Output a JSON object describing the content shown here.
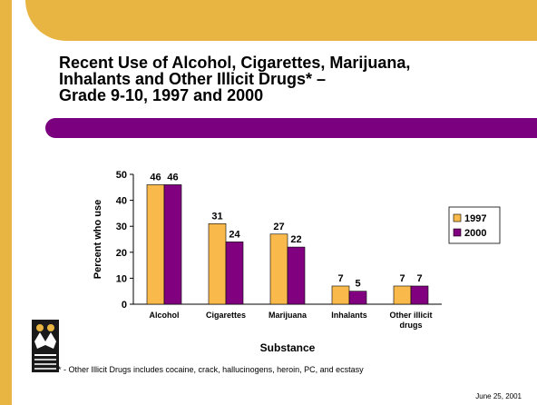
{
  "slide": {
    "title_lines": [
      "Recent Use of Alcohol, Cigarettes, Marijuana,",
      "Inhalants and Other Illicit Drugs* –",
      "Grade 9-10, 1997 and 2000"
    ],
    "footnote": "* - Other Illicit Drugs includes cocaine, crack, hallucinogens, heroin, PC, and ecstasy",
    "date": "June 25, 2001",
    "colors": {
      "accent_gold": "#e8b442",
      "accent_purple": "#7a0080"
    }
  },
  "chart_data": {
    "type": "bar",
    "categories": [
      "Alcohol",
      "Cigarettes",
      "Marijuana",
      "Inhalants",
      "Other illicit drugs"
    ],
    "category_label_lines": [
      [
        "Alcohol"
      ],
      [
        "Cigarettes"
      ],
      [
        "Marijuana"
      ],
      [
        "Inhalants"
      ],
      [
        "Other illicit",
        "drugs"
      ]
    ],
    "series": [
      {
        "name": "1997",
        "values": [
          46,
          31,
          27,
          7,
          7
        ],
        "color": "#f9b94b"
      },
      {
        "name": "2000",
        "values": [
          46,
          24,
          22,
          5,
          7
        ],
        "color": "#800080"
      }
    ],
    "xlabel": "Substance",
    "ylabel": "Percent who use",
    "ylim": [
      0,
      50
    ],
    "yticks": [
      0,
      10,
      20,
      30,
      40,
      50
    ],
    "grid": false,
    "legend": "right"
  }
}
